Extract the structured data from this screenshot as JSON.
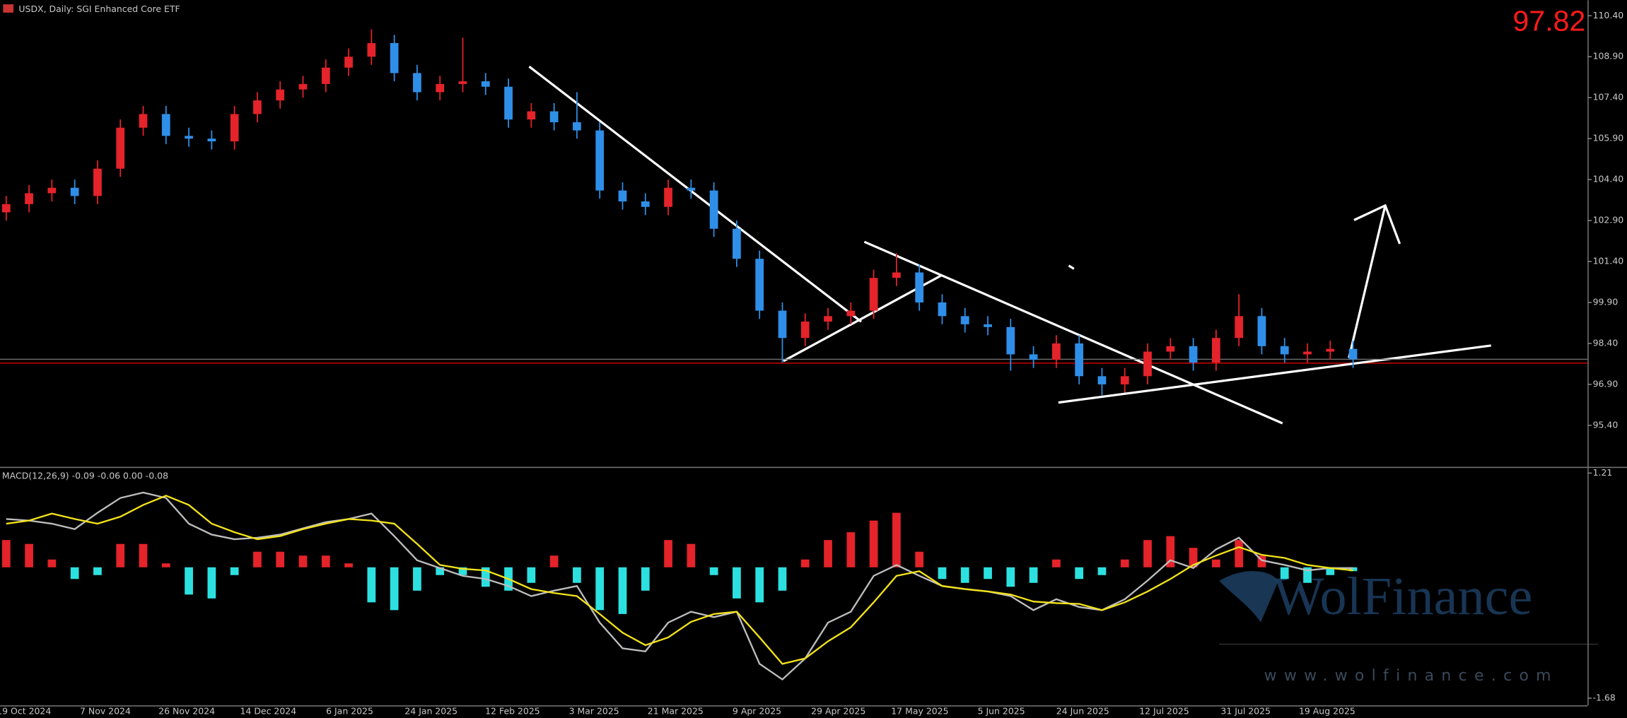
{
  "chart_data": [
    {
      "type": "candlestick",
      "title": "USDX, Daily:  SGI Enhanced Core ETF",
      "last_price": 97.82,
      "xlabels": [
        "19 Oct 2024",
        "7 Nov 2024",
        "26 Nov 2024",
        "14 Dec 2024",
        "6 Jan 2025",
        "24 Jan 2025",
        "12 Feb 2025",
        "3 Mar 2025",
        "21 Mar 2025",
        "9 Apr 2025",
        "29 Apr 2025",
        "17 May 2025",
        "5 Jun 2025",
        "24 Jun 2025",
        "12 Jul 2025",
        "31 Jul 2025",
        "19 Aug 2025"
      ],
      "open": [
        103.2,
        103.5,
        103.9,
        104.1,
        103.8,
        104.8,
        106.3,
        106.8,
        106.0,
        105.9,
        105.8,
        106.8,
        107.3,
        107.7,
        107.9,
        108.5,
        108.9,
        109.4,
        108.3,
        107.6,
        107.9,
        108.0,
        107.8,
        106.6,
        106.9,
        106.5,
        106.2,
        104.0,
        103.6,
        103.4,
        104.1,
        104.0,
        102.6,
        101.5,
        99.6,
        98.6,
        99.2,
        99.4,
        99.6,
        100.8,
        101.0,
        99.9,
        99.4,
        99.1,
        99.0,
        98.0,
        97.8,
        98.4,
        97.2,
        96.9,
        97.2,
        98.1,
        98.3,
        97.7,
        98.6,
        99.4,
        98.3,
        98.0,
        98.1,
        98.2
      ],
      "high": [
        103.8,
        104.2,
        104.4,
        104.4,
        105.1,
        106.6,
        107.1,
        107.1,
        106.3,
        106.2,
        107.1,
        107.6,
        108.0,
        108.2,
        108.8,
        109.2,
        109.9,
        109.7,
        108.6,
        108.2,
        109.6,
        108.3,
        108.1,
        107.2,
        107.2,
        107.6,
        106.5,
        104.3,
        103.9,
        104.4,
        104.4,
        104.3,
        102.9,
        101.8,
        99.9,
        99.5,
        99.7,
        99.9,
        101.1,
        101.7,
        101.3,
        100.2,
        99.7,
        99.4,
        99.3,
        98.3,
        98.7,
        98.7,
        97.5,
        97.5,
        98.4,
        98.6,
        98.6,
        98.9,
        100.2,
        99.7,
        98.6,
        98.4,
        98.5,
        98.5
      ],
      "low": [
        102.9,
        103.2,
        103.6,
        103.5,
        103.5,
        104.5,
        106.0,
        105.7,
        105.6,
        105.5,
        105.5,
        106.5,
        107.0,
        107.4,
        107.6,
        108.2,
        108.6,
        108.0,
        107.3,
        107.3,
        107.6,
        107.5,
        106.3,
        106.3,
        106.2,
        105.9,
        103.7,
        103.3,
        103.1,
        103.1,
        103.7,
        102.3,
        101.2,
        99.3,
        97.7,
        98.3,
        98.9,
        99.1,
        99.3,
        100.5,
        99.6,
        99.1,
        98.8,
        98.7,
        97.4,
        97.5,
        97.5,
        96.9,
        96.5,
        96.6,
        96.9,
        97.8,
        97.4,
        97.4,
        98.3,
        98.0,
        97.7,
        97.7,
        97.8,
        97.5
      ],
      "close": [
        103.5,
        103.9,
        104.1,
        103.8,
        104.8,
        106.3,
        106.8,
        106.0,
        105.9,
        105.8,
        106.8,
        107.3,
        107.7,
        107.9,
        108.5,
        108.9,
        109.4,
        108.3,
        107.6,
        107.9,
        108.0,
        107.8,
        106.6,
        106.9,
        106.5,
        106.2,
        104.0,
        103.6,
        103.4,
        104.1,
        104.0,
        102.6,
        101.5,
        99.6,
        98.6,
        99.2,
        99.4,
        99.6,
        100.8,
        101.0,
        99.9,
        99.4,
        99.1,
        99.0,
        98.0,
        97.8,
        98.4,
        97.2,
        96.9,
        97.2,
        98.1,
        98.3,
        97.7,
        98.6,
        99.4,
        98.3,
        98.0,
        98.1,
        98.2,
        97.82
      ],
      "up_color": "#e4232a",
      "down_color": "#2f8fe8",
      "ylim": [
        93.88,
        110.97
      ],
      "yticks": [
        {
          "value": 110.4,
          "label": "110.40"
        },
        {
          "value": 108.9,
          "label": "108.90"
        },
        {
          "value": 107.4,
          "label": "107.40"
        },
        {
          "value": 105.9,
          "label": "105.90"
        },
        {
          "value": 104.4,
          "label": "104.40"
        },
        {
          "value": 102.9,
          "label": "102.90"
        },
        {
          "value": 101.4,
          "label": "101.40"
        },
        {
          "value": 99.9,
          "label": "99.90"
        },
        {
          "value": 98.4,
          "label": "98.40"
        },
        {
          "value": 96.9,
          "label": "96.90"
        },
        {
          "value": 95.4,
          "label": "95.40"
        }
      ]
    },
    {
      "type": "macd",
      "title": "MACD(12,26,9) -0.09 -0.06 0.00 -0.08",
      "histogram": [
        0.35,
        0.3,
        0.1,
        -0.15,
        -0.1,
        0.3,
        0.3,
        0.05,
        -0.35,
        -0.4,
        -0.1,
        0.2,
        0.2,
        0.15,
        0.15,
        0.05,
        -0.45,
        -0.55,
        -0.3,
        -0.1,
        -0.1,
        -0.25,
        -0.3,
        -0.2,
        0.15,
        -0.2,
        -0.55,
        -0.6,
        -0.3,
        0.35,
        0.3,
        -0.1,
        -0.4,
        -0.45,
        -0.3,
        0.1,
        0.35,
        0.45,
        0.6,
        0.7,
        0.2,
        -0.15,
        -0.2,
        -0.15,
        -0.25,
        -0.2,
        0.1,
        -0.15,
        -0.1,
        0.1,
        0.35,
        0.4,
        0.25,
        0.1,
        0.35,
        0.15,
        -0.15,
        -0.2,
        -0.1,
        -0.05
      ],
      "pos_color": "#e4232a",
      "neg_color": "#2de0e0",
      "macd": [
        0.62,
        0.6,
        0.56,
        0.49,
        0.7,
        0.89,
        0.96,
        0.89,
        0.56,
        0.42,
        0.36,
        0.38,
        0.42,
        0.5,
        0.58,
        0.62,
        0.69,
        0.4,
        0.09,
        -0.01,
        -0.11,
        -0.15,
        -0.24,
        -0.37,
        -0.3,
        -0.24,
        -0.71,
        -1.04,
        -1.08,
        -0.71,
        -0.57,
        -0.64,
        -0.57,
        -1.24,
        -1.44,
        -1.17,
        -0.71,
        -0.57,
        -0.11,
        0.03,
        -0.11,
        -0.24,
        -0.28,
        -0.31,
        -0.37,
        -0.55,
        -0.41,
        -0.51,
        -0.55,
        -0.41,
        -0.17,
        0.09,
        -0.01,
        0.23,
        0.38,
        0.09,
        0.03,
        -0.04,
        -0.01,
        -0.01
      ],
      "macd_color": "#bdbdbd",
      "signal": [
        0.56,
        0.6,
        0.69,
        0.62,
        0.56,
        0.65,
        0.8,
        0.92,
        0.8,
        0.56,
        0.45,
        0.36,
        0.4,
        0.49,
        0.56,
        0.62,
        0.6,
        0.56,
        0.3,
        0.03,
        -0.02,
        -0.04,
        -0.15,
        -0.28,
        -0.33,
        -0.37,
        -0.6,
        -0.84,
        -1.0,
        -0.9,
        -0.7,
        -0.6,
        -0.57,
        -0.9,
        -1.24,
        -1.17,
        -0.95,
        -0.77,
        -0.45,
        -0.11,
        -0.05,
        -0.24,
        -0.28,
        -0.31,
        -0.35,
        -0.44,
        -0.46,
        -0.47,
        -0.55,
        -0.45,
        -0.31,
        -0.15,
        0.03,
        0.15,
        0.26,
        0.16,
        0.12,
        0.03,
        -0.01,
        -0.04
      ],
      "signal_color": "#f2e21a",
      "ylim": [
        -1.773,
        1.263
      ],
      "yticks": [
        1.21,
        -1.68
      ]
    }
  ],
  "watermark": {
    "brand": "WolFinance",
    "url": "www.wolfinance.com"
  }
}
